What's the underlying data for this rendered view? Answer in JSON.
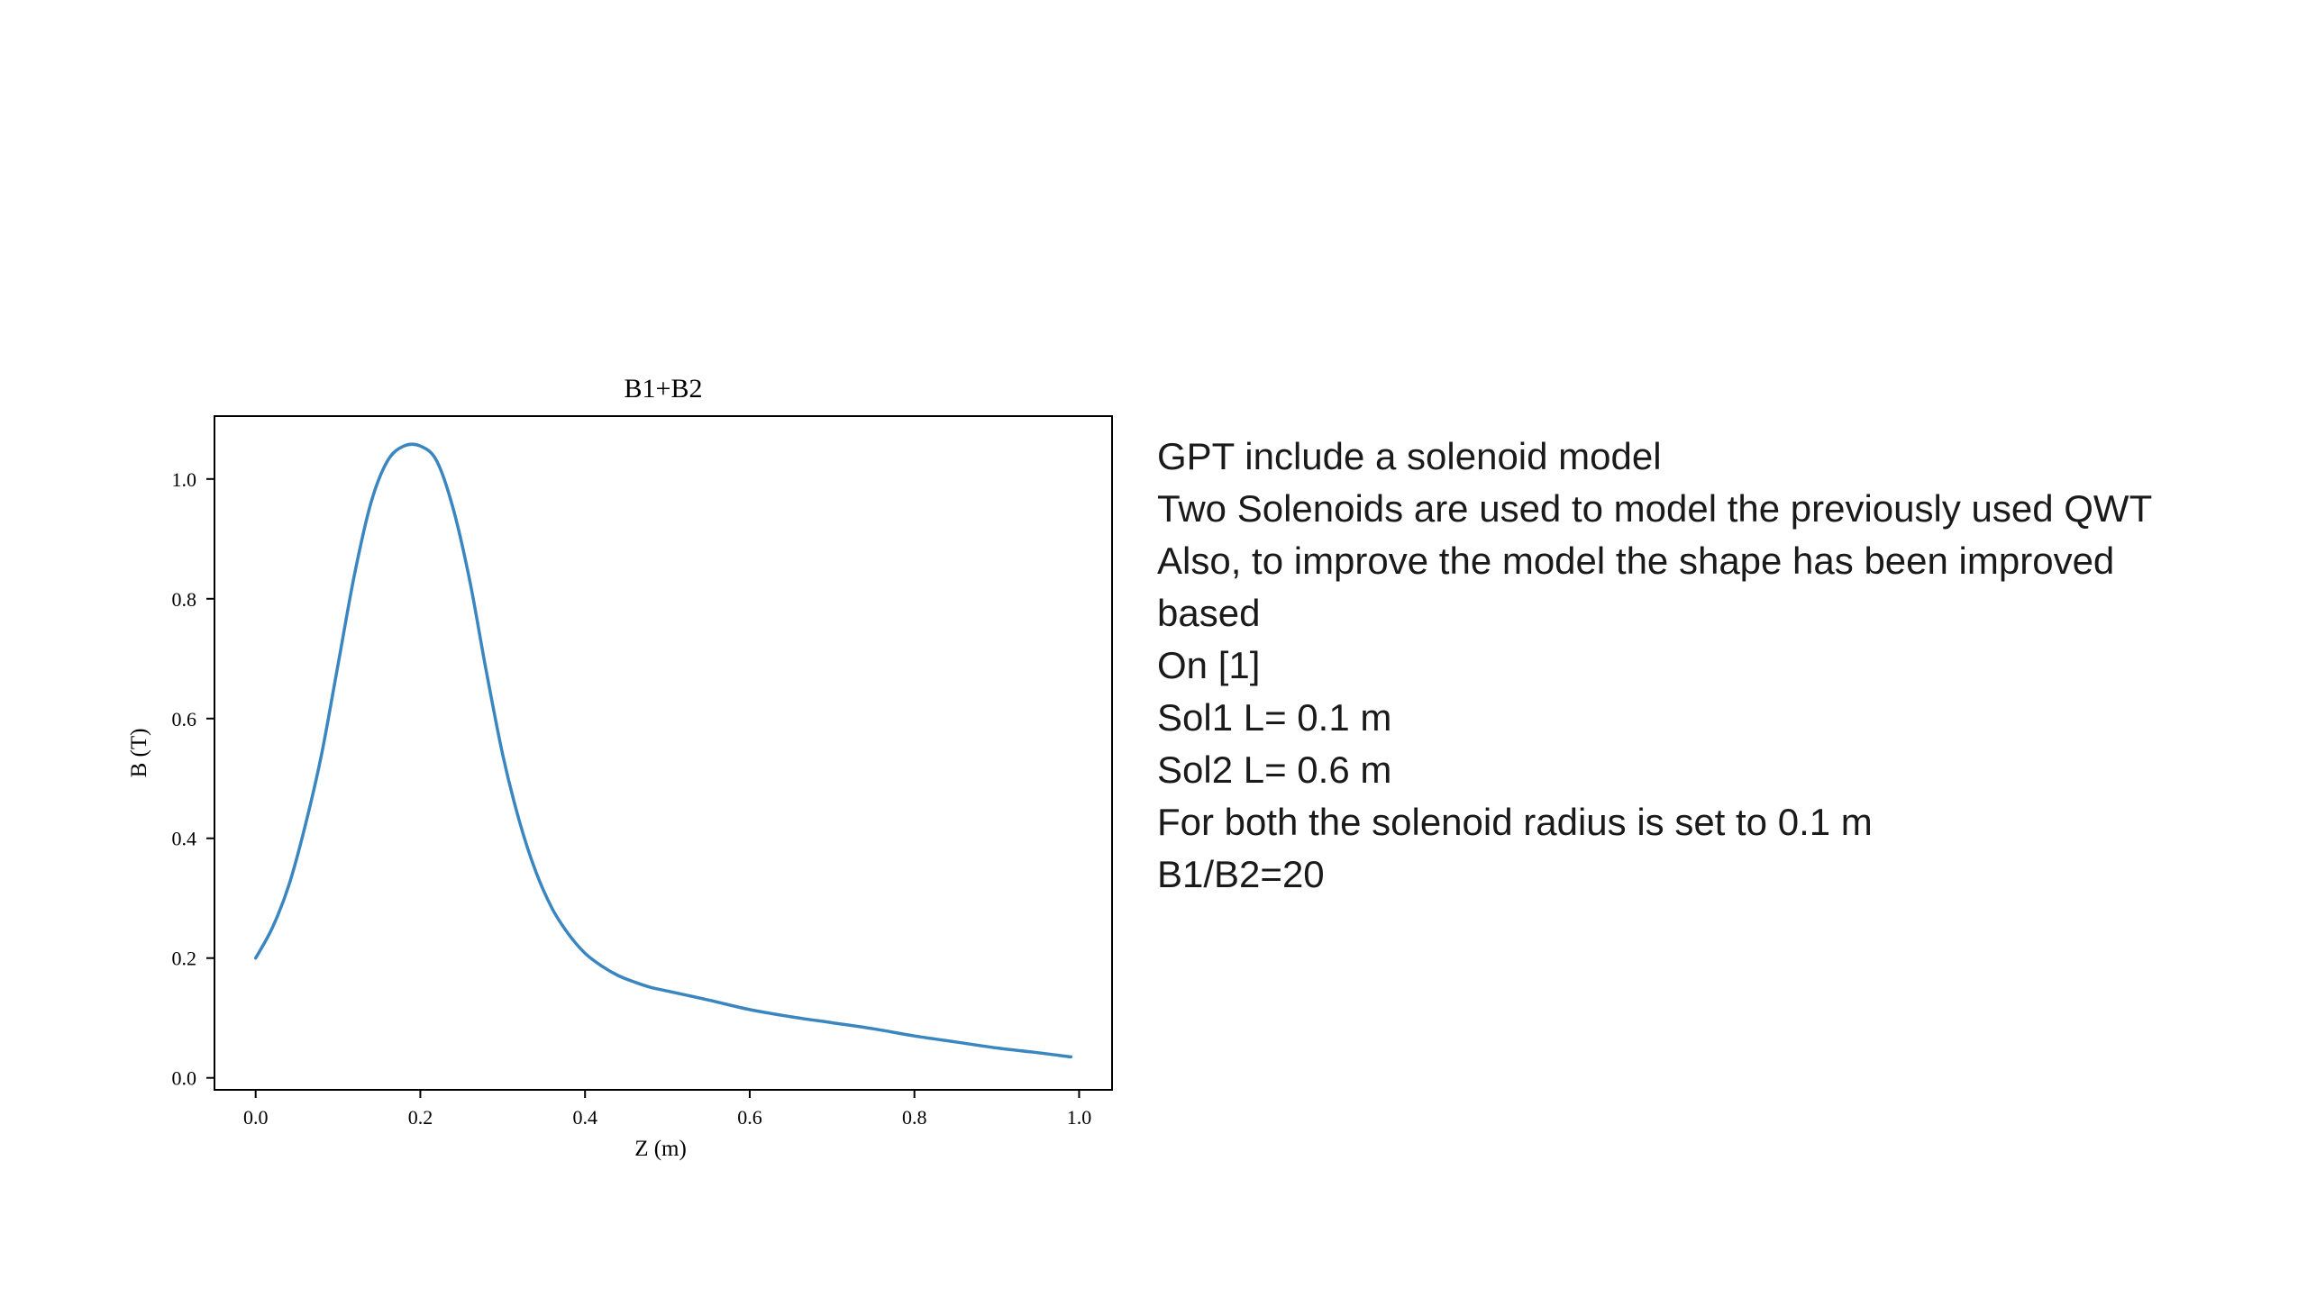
{
  "chart_data": {
    "type": "line",
    "title": "B1+B2",
    "xlabel": "Z (m)",
    "ylabel": "B (T)",
    "xlim": [
      -0.05,
      1.04
    ],
    "ylim": [
      -0.02,
      1.105
    ],
    "xticks": [
      0.0,
      0.2,
      0.4,
      0.6,
      0.8,
      1.0
    ],
    "xtick_labels": [
      "0.0",
      "0.2",
      "0.4",
      "0.6",
      "0.8",
      "1.0"
    ],
    "yticks": [
      0.0,
      0.2,
      0.4,
      0.6,
      0.8,
      1.0
    ],
    "ytick_labels": [
      "0.0",
      "0.2",
      "0.4",
      "0.6",
      "0.8",
      "1.0"
    ],
    "grid": false,
    "legend": "none",
    "line_color": "#3a86c0",
    "series": [
      {
        "x": [
          0.0,
          0.02,
          0.04,
          0.06,
          0.08,
          0.1,
          0.12,
          0.14,
          0.16,
          0.18,
          0.2,
          0.22,
          0.24,
          0.26,
          0.28,
          0.3,
          0.32,
          0.34,
          0.36,
          0.38,
          0.4,
          0.42,
          0.44,
          0.46,
          0.48,
          0.5,
          0.55,
          0.6,
          0.65,
          0.7,
          0.75,
          0.8,
          0.85,
          0.9,
          0.95,
          0.99
        ],
        "values": [
          0.2,
          0.25,
          0.32,
          0.42,
          0.54,
          0.69,
          0.84,
          0.96,
          1.03,
          1.055,
          1.055,
          1.03,
          0.95,
          0.83,
          0.68,
          0.54,
          0.43,
          0.345,
          0.283,
          0.24,
          0.208,
          0.187,
          0.171,
          0.16,
          0.151,
          0.145,
          0.13,
          0.114,
          0.102,
          0.092,
          0.082,
          0.07,
          0.06,
          0.05,
          0.042,
          0.035
        ]
      }
    ]
  },
  "notes": {
    "lines": [
      "GPT include a solenoid model",
      "Two Solenoids are used to model the previously used QWT",
      "Also, to improve the model the shape has been improved",
      "based",
      "On [1]",
      "Sol1 L= 0.1 m",
      "Sol2 L= 0.6 m",
      "For both the solenoid radius is set to 0.1 m",
      "B1/B2=20"
    ]
  }
}
